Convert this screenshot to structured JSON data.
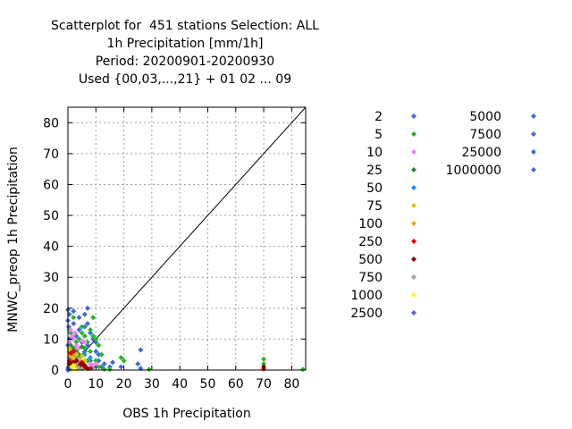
{
  "chart_data": {
    "type": "scatter",
    "title": [
      "Scatterplot for  451 stations Selection: ALL",
      "1h Precipitation [mm/1h]",
      "Period: 20200901-20200930",
      "Used {00,03,...,21} + 01 02 ... 09"
    ],
    "xlabel": "OBS 1h Precipitation",
    "ylabel": "MNWC_preop 1h Precipitation",
    "xlim": [
      0,
      85
    ],
    "ylim": [
      0,
      85
    ],
    "xticks": [
      "0",
      "10",
      "20",
      "30",
      "40",
      "50",
      "60",
      "70",
      "80"
    ],
    "yticks": [
      "0",
      "10",
      "20",
      "30",
      "40",
      "50",
      "60",
      "70",
      "80"
    ],
    "grid": true,
    "diagonal": [
      [
        0,
        0
      ],
      [
        85,
        85
      ]
    ],
    "legend_placement": "right",
    "series": [
      {
        "name": "2",
        "color": "#4169e1",
        "points": [
          [
            0.2,
            0.5
          ],
          [
            0.5,
            2
          ],
          [
            1,
            4
          ],
          [
            1.5,
            1
          ],
          [
            2,
            6
          ],
          [
            0,
            8
          ],
          [
            0.5,
            10
          ],
          [
            1,
            12
          ],
          [
            0.3,
            14
          ],
          [
            0,
            16
          ],
          [
            0.5,
            18
          ],
          [
            0,
            19.5
          ],
          [
            2,
            19
          ],
          [
            4,
            17
          ],
          [
            6,
            18
          ],
          [
            7,
            20
          ],
          [
            3,
            11
          ],
          [
            5,
            9
          ],
          [
            7,
            8
          ],
          [
            8,
            12
          ],
          [
            9,
            10
          ],
          [
            10,
            6
          ],
          [
            11,
            3
          ],
          [
            12,
            1
          ],
          [
            13,
            2
          ],
          [
            15,
            1
          ],
          [
            16,
            2.5
          ],
          [
            19,
            1
          ],
          [
            25,
            2
          ],
          [
            26,
            6.5
          ],
          [
            26,
            0.5
          ],
          [
            5,
            2
          ],
          [
            4,
            4
          ],
          [
            6,
            6
          ],
          [
            8,
            3
          ],
          [
            9,
            1
          ],
          [
            10,
            9
          ],
          [
            11,
            5
          ],
          [
            2,
            3
          ],
          [
            1.5,
            7
          ],
          [
            3,
            1.5
          ],
          [
            7,
            15
          ],
          [
            6,
            14
          ],
          [
            4,
            13
          ],
          [
            2,
            15
          ]
        ]
      },
      {
        "name": "5",
        "color": "#22b822",
        "points": [
          [
            2,
            17
          ],
          [
            5,
            14
          ],
          [
            6,
            11
          ],
          [
            8,
            13
          ],
          [
            9,
            11
          ],
          [
            10,
            10
          ],
          [
            11,
            8
          ],
          [
            9,
            17
          ],
          [
            12,
            5
          ],
          [
            8,
            6
          ],
          [
            7,
            9
          ],
          [
            3,
            9
          ],
          [
            4,
            10
          ],
          [
            5,
            12
          ],
          [
            6,
            7
          ],
          [
            10,
            3
          ],
          [
            11,
            1
          ],
          [
            20,
            3
          ],
          [
            19,
            4
          ],
          [
            29,
            0.2
          ],
          [
            70,
            3.5
          ],
          [
            70,
            2
          ],
          [
            84,
            0.2
          ],
          [
            1,
            12
          ],
          [
            0.5,
            13
          ],
          [
            1,
            2
          ],
          [
            2,
            1
          ],
          [
            5,
            0.5
          ],
          [
            13,
            0.3
          ],
          [
            15,
            0.2
          ],
          [
            7,
            3
          ]
        ]
      },
      {
        "name": "10",
        "color": "#ee82ee",
        "points": [
          [
            1,
            13
          ],
          [
            2,
            10
          ],
          [
            3,
            8
          ],
          [
            5,
            9.5
          ],
          [
            1.5,
            11
          ],
          [
            6,
            9
          ],
          [
            2,
            5.5
          ],
          [
            4,
            7
          ],
          [
            0.5,
            9
          ],
          [
            8,
            2
          ],
          [
            9,
            1.5
          ],
          [
            10,
            2
          ],
          [
            2.5,
            12
          ],
          [
            1,
            7
          ]
        ]
      },
      {
        "name": "25",
        "color": "#2e8b2e",
        "points": [
          [
            1,
            8
          ],
          [
            2,
            7
          ],
          [
            3,
            6
          ],
          [
            4,
            5
          ],
          [
            0.5,
            6
          ],
          [
            1,
            5
          ],
          [
            2.5,
            4.5
          ],
          [
            5,
            7.5
          ],
          [
            3.5,
            3
          ]
        ]
      },
      {
        "name": "50",
        "color": "#1e90ff",
        "points": [
          [
            0.5,
            4
          ],
          [
            1,
            3
          ],
          [
            2,
            2
          ],
          [
            3,
            4
          ],
          [
            6,
            5
          ],
          [
            8,
            4
          ],
          [
            4,
            2.5
          ]
        ]
      },
      {
        "name": "75",
        "color": "#cdcd00",
        "points": [
          [
            0.5,
            7
          ],
          [
            1,
            6
          ],
          [
            2,
            4
          ],
          [
            3,
            5
          ],
          [
            1.5,
            2
          ],
          [
            6,
            3
          ],
          [
            5,
            4.5
          ]
        ]
      },
      {
        "name": "100",
        "color": "#ffa500",
        "points": [
          [
            0.5,
            5
          ],
          [
            1,
            4.5
          ],
          [
            2,
            3
          ],
          [
            3,
            2
          ],
          [
            1,
            1
          ],
          [
            4,
            3.5
          ],
          [
            5,
            1
          ]
        ]
      },
      {
        "name": "250",
        "color": "#e60000",
        "points": [
          [
            0.5,
            3
          ],
          [
            1,
            2
          ],
          [
            2,
            1
          ],
          [
            3,
            0.5
          ],
          [
            1,
            5.5
          ],
          [
            2,
            6
          ],
          [
            4,
            1.5
          ],
          [
            6,
            1
          ],
          [
            5,
            2.5
          ],
          [
            70,
            0.3
          ],
          [
            8,
            0.5
          ]
        ]
      },
      {
        "name": "500",
        "color": "#8b0000",
        "points": [
          [
            0.3,
            1
          ],
          [
            1,
            1.5
          ],
          [
            2,
            2.5
          ],
          [
            3,
            3
          ],
          [
            4,
            1
          ],
          [
            5,
            2
          ],
          [
            6,
            1.5
          ],
          [
            7,
            0.5
          ],
          [
            0.5,
            2.2
          ],
          [
            70,
            1
          ]
        ]
      },
      {
        "name": "750",
        "color": "#a0a0a0",
        "points": [
          [
            0.5,
            0.5
          ],
          [
            1,
            0.3
          ],
          [
            2,
            0.8
          ],
          [
            3,
            1.2
          ],
          [
            4,
            0.6
          ]
        ]
      },
      {
        "name": "1000",
        "color": "#ffff00",
        "points": [
          [
            0.3,
            0.3
          ],
          [
            1,
            0.7
          ],
          [
            1.5,
            0.2
          ],
          [
            2,
            1.5
          ],
          [
            2.5,
            0.4
          ]
        ]
      },
      {
        "name": "2500",
        "color": "#4169e1",
        "points": [
          [
            0,
            0
          ],
          [
            0.2,
            0.1
          ],
          [
            0.4,
            0.3
          ],
          [
            0.1,
            0.6
          ]
        ]
      },
      {
        "name": "5000",
        "color": "#4169e1",
        "points": []
      },
      {
        "name": "7500",
        "color": "#4169e1",
        "points": []
      },
      {
        "name": "25000",
        "color": "#4169e1",
        "points": []
      },
      {
        "name": "1000000",
        "color": "#4169e1",
        "points": []
      }
    ]
  }
}
